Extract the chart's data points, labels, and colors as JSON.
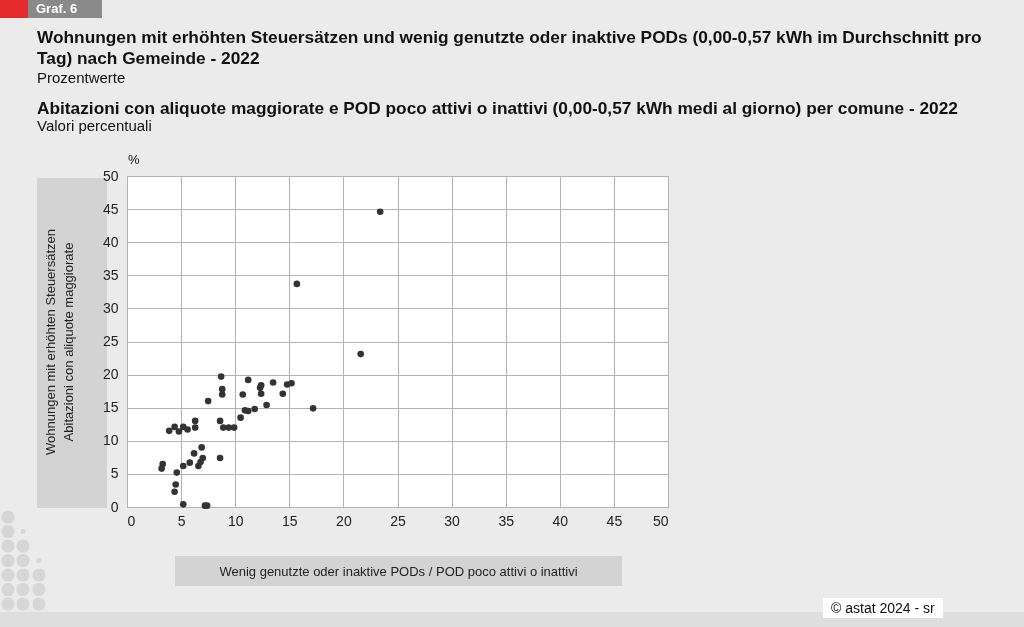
{
  "chart_data": {
    "type": "scatter",
    "title": "Wohnungen mit erhöhten Steuersätzen und wenig genutzte oder inaktive PODs (0,00-0,57 kWh im Durchschnitt pro Tag) nach Gemeinde - 2022",
    "subtitle": "Prozentwerte",
    "annotations": [
      "Graf. 6",
      "Abitazioni con aliquote maggiorate e POD poco attivi o inattivi (0,00-0,57 kWh medi al giorno) per comune - 2022",
      "Valori percentuali",
      "%",
      "© astat 2024 - sr"
    ],
    "xlabel": "Wenig genutzte oder inaktive PODs / POD poco attivi o inattivi",
    "ylabel": "Wohnungen mit erhöhten Steuersätzen\nAbitazioni con aliquote maggiorate",
    "x": [
      23.4,
      15.7,
      21.6,
      8.7,
      11.2,
      8.8,
      8.8,
      10.7,
      7.5,
      12.3,
      12.4,
      12.4,
      13.5,
      14.4,
      14.8,
      15.2,
      12.9,
      17.2,
      11.8,
      10.9,
      11.2,
      10.5,
      8.6,
      8.9,
      9.4,
      9.9,
      6.3,
      6.3,
      3.9,
      4.4,
      4.8,
      5.2,
      5.6,
      6.9,
      6.2,
      7.0,
      6.8,
      6.6,
      5.8,
      5.2,
      8.6,
      3.3,
      3.2,
      4.6,
      4.5,
      4.4,
      5.2,
      7.2,
      7.4
    ],
    "values": [
      44.6,
      33.7,
      23.1,
      19.7,
      19.2,
      17.8,
      17.0,
      17.0,
      16.0,
      18.0,
      18.4,
      17.1,
      18.8,
      17.1,
      18.5,
      18.7,
      15.4,
      14.9,
      14.8,
      14.6,
      14.5,
      13.5,
      13.0,
      12.0,
      12.0,
      12.0,
      13.0,
      12.0,
      11.5,
      12.1,
      11.4,
      12.1,
      11.7,
      9.0,
      8.1,
      7.4,
      6.8,
      6.2,
      6.7,
      6.2,
      7.4,
      6.5,
      5.8,
      5.2,
      3.4,
      2.3,
      0.4,
      0.2,
      0.2
    ],
    "color": "#333333",
    "marker": "circle",
    "xlim": [
      0,
      50
    ],
    "ylim": [
      0,
      50
    ],
    "xticks": [
      0,
      5,
      10,
      15,
      20,
      25,
      30,
      35,
      40,
      45,
      50
    ],
    "yticks": [
      0,
      5,
      10,
      15,
      20,
      25,
      30,
      35,
      40,
      45,
      50
    ],
    "grid": true
  }
}
